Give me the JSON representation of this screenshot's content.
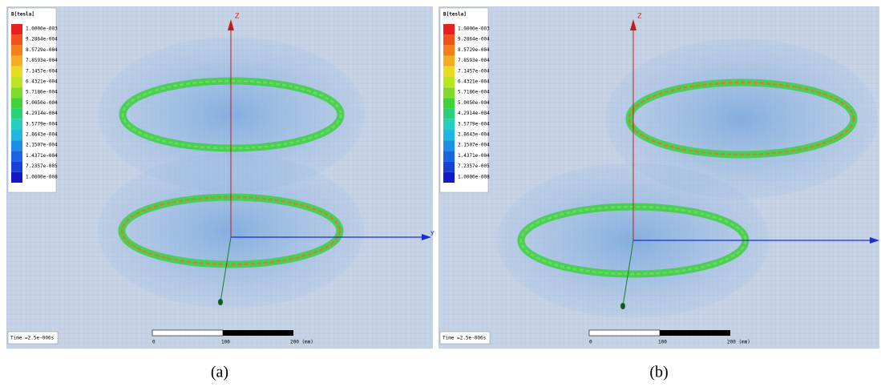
{
  "panels": [
    {
      "legend_title": "B[tesla]",
      "legend_labels": [
        "1.0000e-003",
        "9.2864e-004",
        "8.5729e-004",
        "7.8593e-004",
        "7.1457e-004",
        "6.4321e-004",
        "5.7186e-004",
        "5.0050e-004",
        "4.2914e-004",
        "3.5779e-004",
        "2.8643e-004",
        "2.1507e-004",
        "1.4371e-004",
        "7.2357e-005",
        "1.0000e-008"
      ],
      "z_axis_label": "Z",
      "y_axis_label": "y",
      "time": "Time =2.5e-006s",
      "scale_labels": [
        "0",
        "100",
        "200 (mm)"
      ],
      "caption": "(a)"
    },
    {
      "legend_title": "B[tesla]",
      "legend_labels": [
        "1.0000e-003",
        "9.2864e-004",
        "8.5729e-004",
        "7.8593e-004",
        "7.1457e-004",
        "6.4321e-004",
        "5.7186e-004",
        "5.0050e-004",
        "4.2914e-004",
        "3.5779e-004",
        "2.8643e-004",
        "2.1507e-004",
        "1.4371e-004",
        "7.2357e-005",
        "1.0000e-008"
      ],
      "z_axis_label": "Z",
      "time": "Time =2.5e-006s",
      "scale_labels": [
        "0",
        "100",
        "200 (mm)"
      ],
      "caption": "(b)"
    }
  ]
}
